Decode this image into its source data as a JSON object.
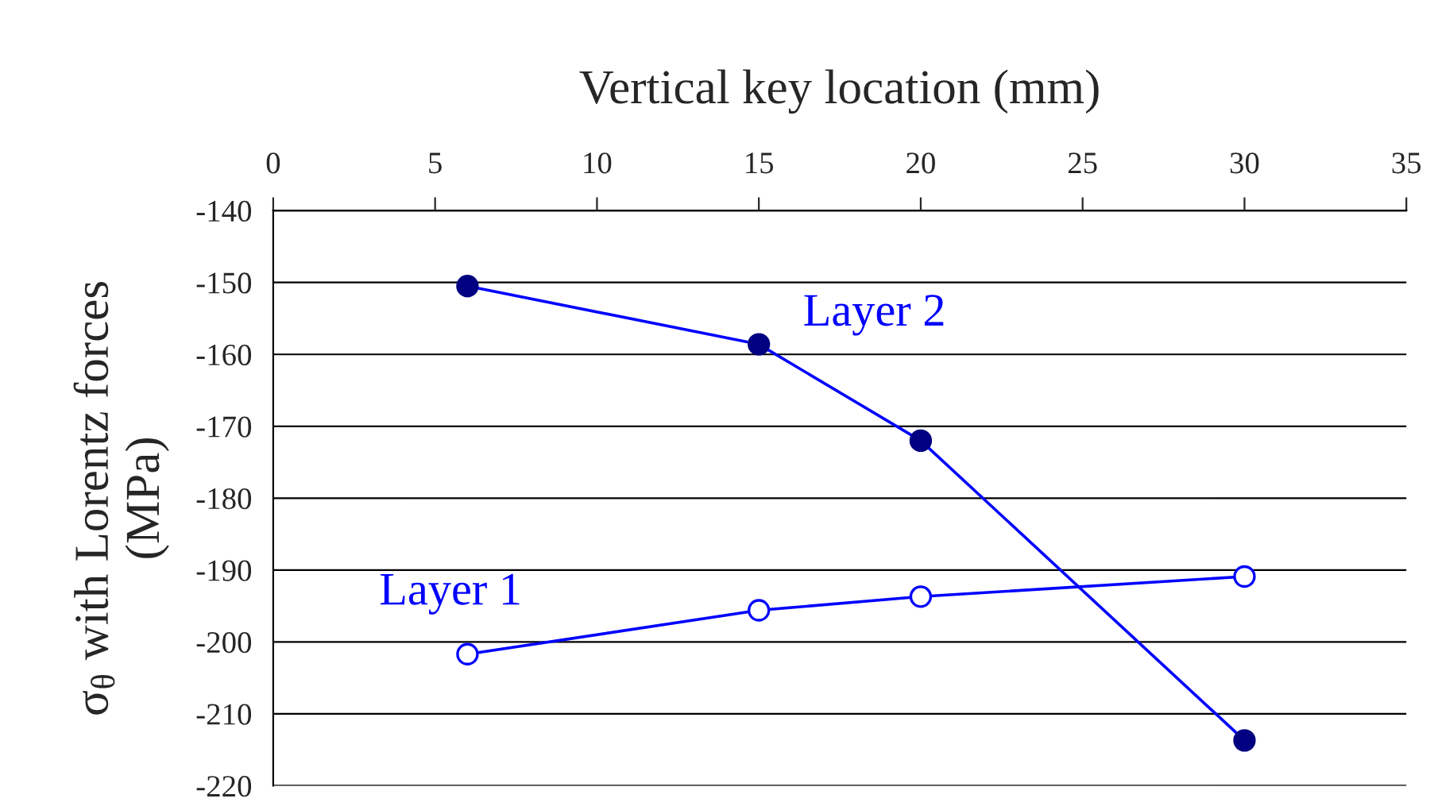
{
  "chart_data": {
    "type": "line",
    "xlabel": "Vertical key location (mm)",
    "ylabel": "σ$_{θ}$ with Lorentz forces\n(MPa)",
    "x": [
      6,
      15,
      20,
      30
    ],
    "series": [
      {
        "name": "Layer 1",
        "color": "#0000ff",
        "values": [
          -201.7,
          -195.6,
          -193.7,
          -190.9
        ]
      },
      {
        "name": "Layer 2",
        "color": "#0000ff",
        "values": [
          -150.5,
          -158.6,
          -172.0,
          -213.7
        ]
      }
    ],
    "xlim": [
      0,
      35
    ],
    "xticks": [
      0,
      5,
      10,
      15,
      20,
      25,
      30,
      35
    ],
    "ylim": [
      -220,
      -140
    ],
    "yticks": [
      -220,
      -210,
      -200,
      -190,
      -180,
      -170,
      -160,
      -150,
      -140
    ],
    "grid": "y",
    "legend": false,
    "marker": "circle",
    "line_style": "solid"
  }
}
